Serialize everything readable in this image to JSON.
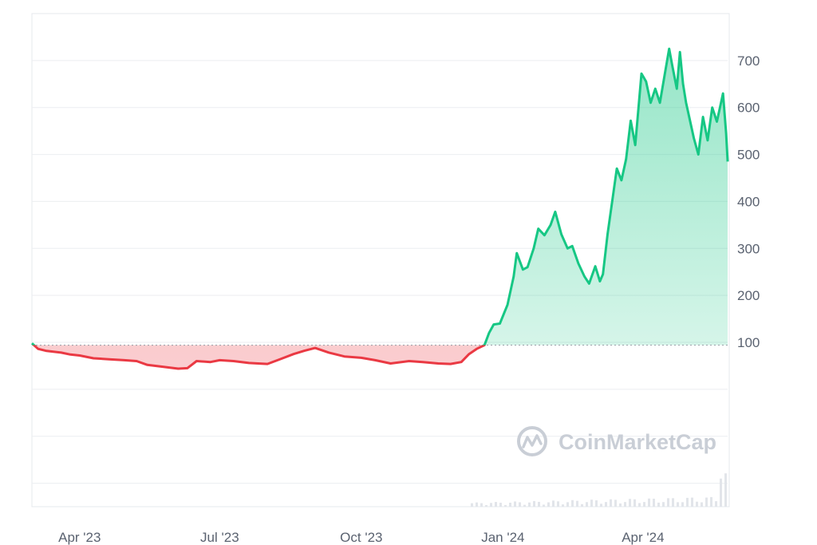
{
  "chart_data": {
    "type": "area",
    "title": "",
    "xlabel": "",
    "ylabel": "",
    "x_ticks": [
      "Apr '23",
      "Jul '23",
      "Oct '23",
      "Jan '24",
      "Apr '24"
    ],
    "x_tick_dates": [
      "2023-04-01",
      "2023-07-01",
      "2023-10-01",
      "2024-01-01",
      "2024-04-01"
    ],
    "y_ticks": [
      100,
      200,
      300,
      400,
      500,
      600,
      700
    ],
    "ylim": [
      -250,
      800
    ],
    "grid": true,
    "baseline": 94,
    "colors": {
      "above": "#16c784",
      "below": "#ea3943",
      "baseline": "#9aa0a8"
    },
    "watermark": "CoinMarketCap",
    "series": [
      {
        "points": [
          [
            "2023-03-01",
            98
          ],
          [
            "2023-03-05",
            86
          ],
          [
            "2023-03-10",
            82
          ],
          [
            "2023-03-15",
            80
          ],
          [
            "2023-03-20",
            78
          ],
          [
            "2023-03-26",
            74
          ],
          [
            "2023-04-01",
            72
          ],
          [
            "2023-04-10",
            66
          ],
          [
            "2023-04-20",
            64
          ],
          [
            "2023-04-30",
            62
          ],
          [
            "2023-05-08",
            60
          ],
          [
            "2023-05-15",
            52
          ],
          [
            "2023-05-25",
            48
          ],
          [
            "2023-06-04",
            44
          ],
          [
            "2023-06-10",
            45
          ],
          [
            "2023-06-16",
            60
          ],
          [
            "2023-06-25",
            58
          ],
          [
            "2023-07-01",
            62
          ],
          [
            "2023-07-10",
            60
          ],
          [
            "2023-07-20",
            56
          ],
          [
            "2023-08-01",
            54
          ],
          [
            "2023-08-10",
            65
          ],
          [
            "2023-08-18",
            75
          ],
          [
            "2023-08-25",
            82
          ],
          [
            "2023-09-01",
            88
          ],
          [
            "2023-09-10",
            78
          ],
          [
            "2023-09-20",
            70
          ],
          [
            "2023-10-01",
            67
          ],
          [
            "2023-10-10",
            62
          ],
          [
            "2023-10-20",
            55
          ],
          [
            "2023-11-01",
            60
          ],
          [
            "2023-11-10",
            58
          ],
          [
            "2023-11-20",
            55
          ],
          [
            "2023-11-28",
            54
          ],
          [
            "2023-12-05",
            58
          ],
          [
            "2023-12-10",
            75
          ],
          [
            "2023-12-15",
            86
          ],
          [
            "2023-12-20",
            94
          ],
          [
            "2023-12-23",
            120
          ],
          [
            "2023-12-26",
            138
          ],
          [
            "2023-12-30",
            140
          ],
          [
            "2024-01-04",
            180
          ],
          [
            "2024-01-08",
            240
          ],
          [
            "2024-01-10",
            290
          ],
          [
            "2024-01-14",
            255
          ],
          [
            "2024-01-17",
            260
          ],
          [
            "2024-01-21",
            300
          ],
          [
            "2024-01-24",
            342
          ],
          [
            "2024-01-28",
            328
          ],
          [
            "2024-02-01",
            350
          ],
          [
            "2024-02-04",
            378
          ],
          [
            "2024-02-08",
            330
          ],
          [
            "2024-02-12",
            300
          ],
          [
            "2024-02-15",
            305
          ],
          [
            "2024-02-19",
            268
          ],
          [
            "2024-02-23",
            240
          ],
          [
            "2024-02-26",
            225
          ],
          [
            "2024-03-01",
            262
          ],
          [
            "2024-03-04",
            230
          ],
          [
            "2024-03-06",
            245
          ],
          [
            "2024-03-09",
            330
          ],
          [
            "2024-03-12",
            400
          ],
          [
            "2024-03-15",
            470
          ],
          [
            "2024-03-18",
            445
          ],
          [
            "2024-03-21",
            490
          ],
          [
            "2024-03-24",
            572
          ],
          [
            "2024-03-27",
            520
          ],
          [
            "2024-03-31",
            672
          ],
          [
            "2024-04-03",
            655
          ],
          [
            "2024-04-06",
            610
          ],
          [
            "2024-04-09",
            640
          ],
          [
            "2024-04-12",
            610
          ],
          [
            "2024-04-15",
            668
          ],
          [
            "2024-04-18",
            725
          ],
          [
            "2024-04-20",
            690
          ],
          [
            "2024-04-23",
            640
          ],
          [
            "2024-04-25",
            718
          ],
          [
            "2024-04-27",
            650
          ],
          [
            "2024-04-29",
            610
          ],
          [
            "2024-05-01",
            580
          ],
          [
            "2024-05-04",
            535
          ],
          [
            "2024-05-07",
            500
          ],
          [
            "2024-05-10",
            580
          ],
          [
            "2024-05-13",
            530
          ],
          [
            "2024-05-16",
            600
          ],
          [
            "2024-05-19",
            570
          ],
          [
            "2024-05-21",
            600
          ],
          [
            "2024-05-23",
            630
          ],
          [
            "2024-05-25",
            545
          ],
          [
            "2024-05-26",
            485
          ]
        ]
      }
    ]
  }
}
